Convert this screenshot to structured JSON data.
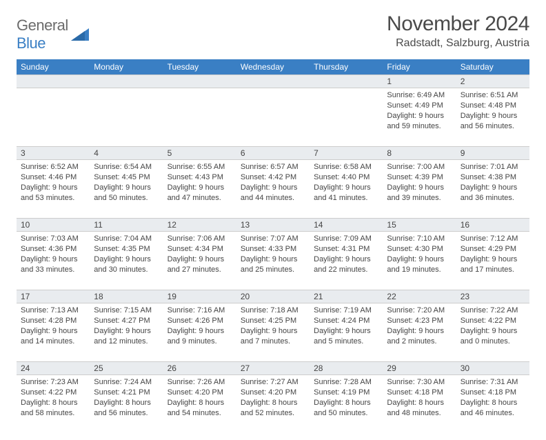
{
  "logo": {
    "text_a": "General",
    "text_b": "Blue"
  },
  "title": "November 2024",
  "location": "Radstadt, Salzburg, Austria",
  "colors": {
    "header_bg": "#3a7fc4",
    "header_fg": "#ffffff",
    "daynum_bg": "#e9ecef",
    "border": "#cccccc",
    "text": "#444444",
    "logo_gray": "#6b6b6b",
    "logo_blue": "#3a7fc4",
    "page_bg": "#ffffff"
  },
  "typography": {
    "title_fontsize": 30,
    "location_fontsize": 16,
    "header_fontsize": 12,
    "daynum_fontsize": 12,
    "body_fontsize": 11
  },
  "weekdays": [
    "Sunday",
    "Monday",
    "Tuesday",
    "Wednesday",
    "Thursday",
    "Friday",
    "Saturday"
  ],
  "weeks": [
    [
      null,
      null,
      null,
      null,
      null,
      {
        "n": "1",
        "sr": "Sunrise: 6:49 AM",
        "ss": "Sunset: 4:49 PM",
        "d1": "Daylight: 9 hours",
        "d2": "and 59 minutes."
      },
      {
        "n": "2",
        "sr": "Sunrise: 6:51 AM",
        "ss": "Sunset: 4:48 PM",
        "d1": "Daylight: 9 hours",
        "d2": "and 56 minutes."
      }
    ],
    [
      {
        "n": "3",
        "sr": "Sunrise: 6:52 AM",
        "ss": "Sunset: 4:46 PM",
        "d1": "Daylight: 9 hours",
        "d2": "and 53 minutes."
      },
      {
        "n": "4",
        "sr": "Sunrise: 6:54 AM",
        "ss": "Sunset: 4:45 PM",
        "d1": "Daylight: 9 hours",
        "d2": "and 50 minutes."
      },
      {
        "n": "5",
        "sr": "Sunrise: 6:55 AM",
        "ss": "Sunset: 4:43 PM",
        "d1": "Daylight: 9 hours",
        "d2": "and 47 minutes."
      },
      {
        "n": "6",
        "sr": "Sunrise: 6:57 AM",
        "ss": "Sunset: 4:42 PM",
        "d1": "Daylight: 9 hours",
        "d2": "and 44 minutes."
      },
      {
        "n": "7",
        "sr": "Sunrise: 6:58 AM",
        "ss": "Sunset: 4:40 PM",
        "d1": "Daylight: 9 hours",
        "d2": "and 41 minutes."
      },
      {
        "n": "8",
        "sr": "Sunrise: 7:00 AM",
        "ss": "Sunset: 4:39 PM",
        "d1": "Daylight: 9 hours",
        "d2": "and 39 minutes."
      },
      {
        "n": "9",
        "sr": "Sunrise: 7:01 AM",
        "ss": "Sunset: 4:38 PM",
        "d1": "Daylight: 9 hours",
        "d2": "and 36 minutes."
      }
    ],
    [
      {
        "n": "10",
        "sr": "Sunrise: 7:03 AM",
        "ss": "Sunset: 4:36 PM",
        "d1": "Daylight: 9 hours",
        "d2": "and 33 minutes."
      },
      {
        "n": "11",
        "sr": "Sunrise: 7:04 AM",
        "ss": "Sunset: 4:35 PM",
        "d1": "Daylight: 9 hours",
        "d2": "and 30 minutes."
      },
      {
        "n": "12",
        "sr": "Sunrise: 7:06 AM",
        "ss": "Sunset: 4:34 PM",
        "d1": "Daylight: 9 hours",
        "d2": "and 27 minutes."
      },
      {
        "n": "13",
        "sr": "Sunrise: 7:07 AM",
        "ss": "Sunset: 4:33 PM",
        "d1": "Daylight: 9 hours",
        "d2": "and 25 minutes."
      },
      {
        "n": "14",
        "sr": "Sunrise: 7:09 AM",
        "ss": "Sunset: 4:31 PM",
        "d1": "Daylight: 9 hours",
        "d2": "and 22 minutes."
      },
      {
        "n": "15",
        "sr": "Sunrise: 7:10 AM",
        "ss": "Sunset: 4:30 PM",
        "d1": "Daylight: 9 hours",
        "d2": "and 19 minutes."
      },
      {
        "n": "16",
        "sr": "Sunrise: 7:12 AM",
        "ss": "Sunset: 4:29 PM",
        "d1": "Daylight: 9 hours",
        "d2": "and 17 minutes."
      }
    ],
    [
      {
        "n": "17",
        "sr": "Sunrise: 7:13 AM",
        "ss": "Sunset: 4:28 PM",
        "d1": "Daylight: 9 hours",
        "d2": "and 14 minutes."
      },
      {
        "n": "18",
        "sr": "Sunrise: 7:15 AM",
        "ss": "Sunset: 4:27 PM",
        "d1": "Daylight: 9 hours",
        "d2": "and 12 minutes."
      },
      {
        "n": "19",
        "sr": "Sunrise: 7:16 AM",
        "ss": "Sunset: 4:26 PM",
        "d1": "Daylight: 9 hours",
        "d2": "and 9 minutes."
      },
      {
        "n": "20",
        "sr": "Sunrise: 7:18 AM",
        "ss": "Sunset: 4:25 PM",
        "d1": "Daylight: 9 hours",
        "d2": "and 7 minutes."
      },
      {
        "n": "21",
        "sr": "Sunrise: 7:19 AM",
        "ss": "Sunset: 4:24 PM",
        "d1": "Daylight: 9 hours",
        "d2": "and 5 minutes."
      },
      {
        "n": "22",
        "sr": "Sunrise: 7:20 AM",
        "ss": "Sunset: 4:23 PM",
        "d1": "Daylight: 9 hours",
        "d2": "and 2 minutes."
      },
      {
        "n": "23",
        "sr": "Sunrise: 7:22 AM",
        "ss": "Sunset: 4:22 PM",
        "d1": "Daylight: 9 hours",
        "d2": "and 0 minutes."
      }
    ],
    [
      {
        "n": "24",
        "sr": "Sunrise: 7:23 AM",
        "ss": "Sunset: 4:22 PM",
        "d1": "Daylight: 8 hours",
        "d2": "and 58 minutes."
      },
      {
        "n": "25",
        "sr": "Sunrise: 7:24 AM",
        "ss": "Sunset: 4:21 PM",
        "d1": "Daylight: 8 hours",
        "d2": "and 56 minutes."
      },
      {
        "n": "26",
        "sr": "Sunrise: 7:26 AM",
        "ss": "Sunset: 4:20 PM",
        "d1": "Daylight: 8 hours",
        "d2": "and 54 minutes."
      },
      {
        "n": "27",
        "sr": "Sunrise: 7:27 AM",
        "ss": "Sunset: 4:20 PM",
        "d1": "Daylight: 8 hours",
        "d2": "and 52 minutes."
      },
      {
        "n": "28",
        "sr": "Sunrise: 7:28 AM",
        "ss": "Sunset: 4:19 PM",
        "d1": "Daylight: 8 hours",
        "d2": "and 50 minutes."
      },
      {
        "n": "29",
        "sr": "Sunrise: 7:30 AM",
        "ss": "Sunset: 4:18 PM",
        "d1": "Daylight: 8 hours",
        "d2": "and 48 minutes."
      },
      {
        "n": "30",
        "sr": "Sunrise: 7:31 AM",
        "ss": "Sunset: 4:18 PM",
        "d1": "Daylight: 8 hours",
        "d2": "and 46 minutes."
      }
    ]
  ]
}
